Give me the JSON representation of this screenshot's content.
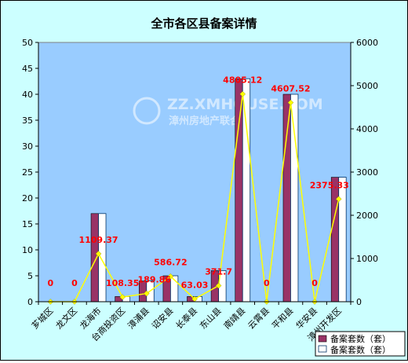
{
  "chart_data": {
    "type": "bar",
    "title": "全市各区县备案详情",
    "categories": [
      "芗城区",
      "龙文区",
      "龙海市",
      "台商投资区",
      "漳浦县",
      "诏安县",
      "长泰县",
      "东山县",
      "南靖县",
      "云霄县",
      "平和县",
      "华安县",
      "漳州开发区"
    ],
    "series": [
      {
        "name": "备案套数（套）",
        "axis": "left",
        "kind": "bar",
        "values": [
          0,
          0,
          17,
          1,
          4,
          5,
          1,
          6,
          43,
          0,
          40,
          0,
          24
        ]
      },
      {
        "name": "备案套数（套）",
        "axis": "left",
        "kind": "bar",
        "values": [
          0,
          0,
          17,
          1,
          4,
          5,
          1,
          6,
          43,
          0,
          40,
          0,
          24
        ]
      },
      {
        "name": "",
        "axis": "right",
        "kind": "line",
        "values": [
          0,
          0,
          1109.37,
          108.35,
          189.86,
          586.72,
          63.03,
          371.7,
          4805.12,
          0,
          4607.52,
          0,
          2375.33
        ]
      }
    ],
    "line_labels": [
      "0",
      "0",
      "1109.37",
      "108.35",
      "189.86",
      "586.72",
      "63.03",
      "371.7",
      "4805.12",
      "0",
      "4607.52",
      "0",
      "2375.33"
    ],
    "ylim": [
      0,
      50
    ],
    "y_ticks": [
      "0",
      "5",
      "10",
      "15",
      "20",
      "25",
      "30",
      "35",
      "40",
      "45",
      "50"
    ],
    "y2lim": [
      0,
      6000
    ],
    "y2_ticks": [
      "0",
      "1000",
      "2000",
      "3000",
      "4000",
      "5000",
      "6000"
    ],
    "grid": false,
    "legend_position": "bottom-right",
    "watermark": {
      "line1": "ZZ.XMHOUSE.COM",
      "line2": "漳州房地产联合网"
    },
    "colors": {
      "background": "#ccffff",
      "plot": "#99ccff",
      "bar1": "#993366",
      "bar2": "#ffffff",
      "bar2_edge": "#003366",
      "line": "#ffff00",
      "label": "#ff0000"
    }
  }
}
